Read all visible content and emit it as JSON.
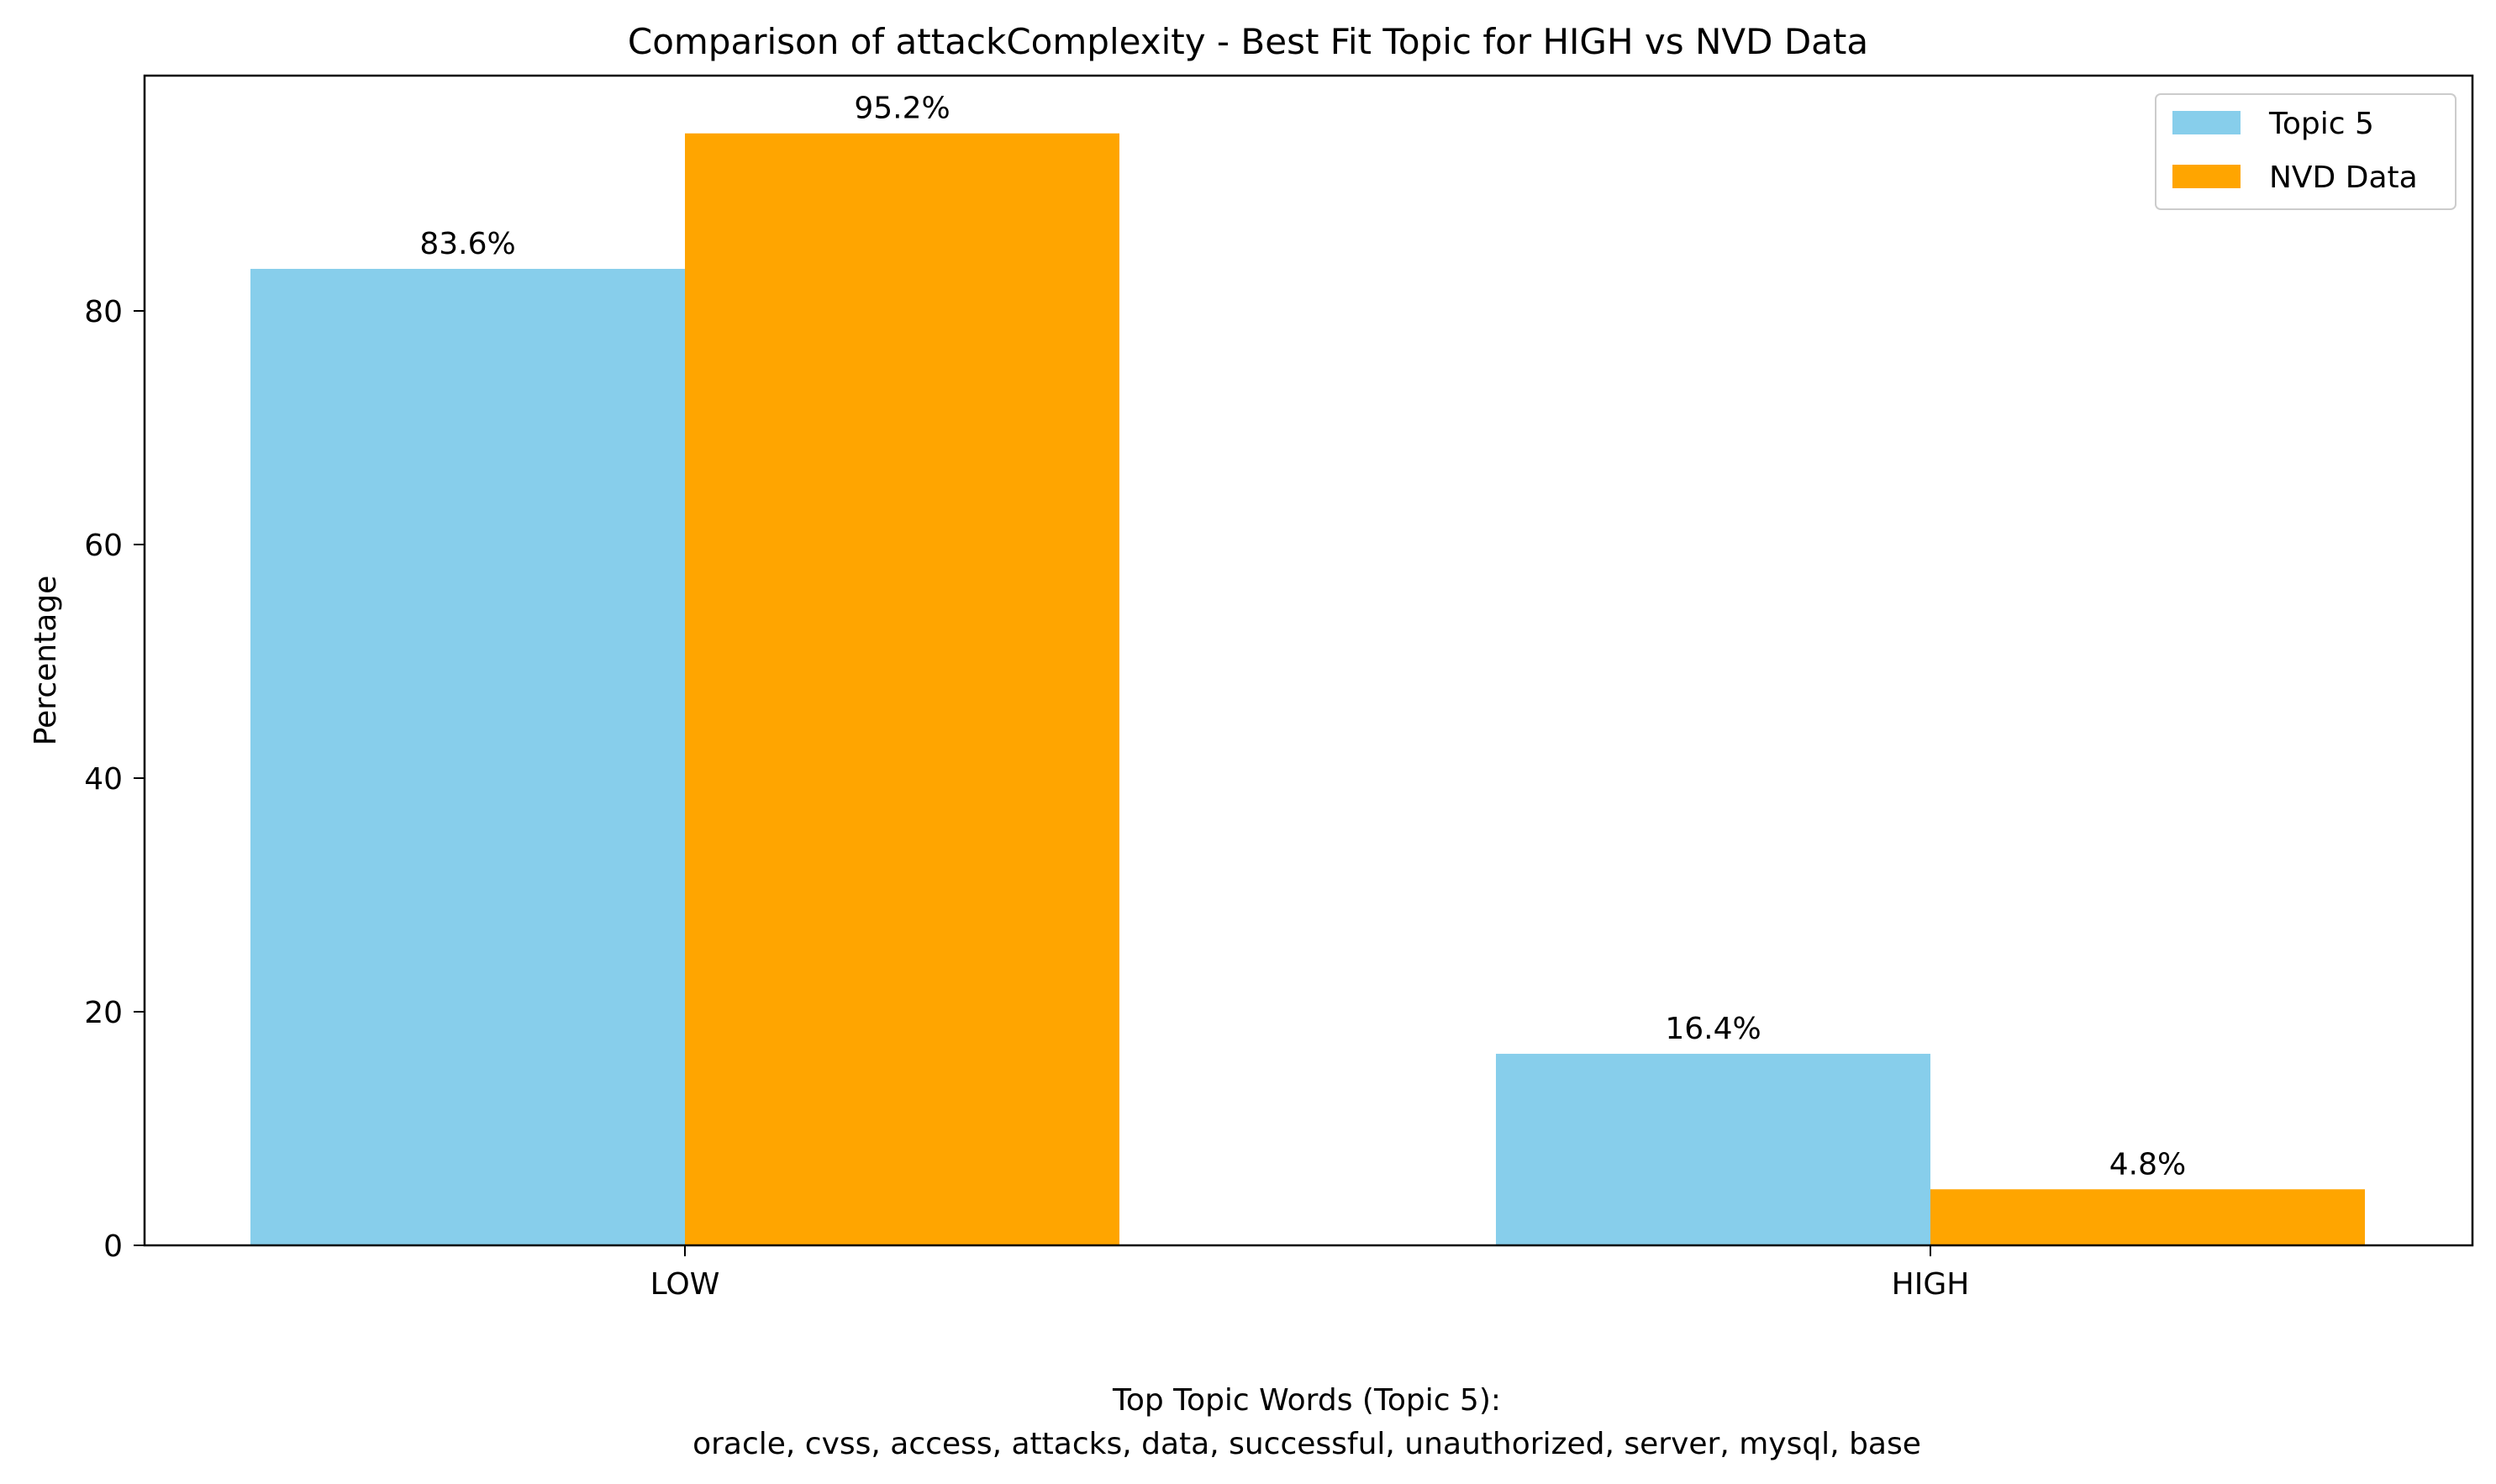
{
  "chart_data": {
    "type": "bar",
    "title": "Comparison of attackComplexity - Best Fit Topic for HIGH vs NVD Data",
    "xlabel": "",
    "ylabel": "Percentage",
    "categories": [
      "LOW",
      "HIGH"
    ],
    "series": [
      {
        "name": "Topic 5",
        "color": "#87CEEB",
        "values": [
          83.6,
          16.4
        ],
        "labels": [
          "83.6%",
          "16.4%"
        ]
      },
      {
        "name": "NVD Data",
        "color": "#FFA500",
        "values": [
          95.2,
          4.8
        ],
        "labels": [
          "95.2%",
          "4.8%"
        ]
      }
    ],
    "ylim": [
      0,
      100
    ],
    "yticks": [
      0,
      20,
      40,
      60,
      80
    ],
    "legend_position": "top-right",
    "grid": false
  },
  "footer": {
    "line1": "Top Topic Words (Topic 5):",
    "line2": "oracle,  cvss,  access,  attacks,  data,  successful,  unauthorized,  server,  mysql,  base"
  }
}
